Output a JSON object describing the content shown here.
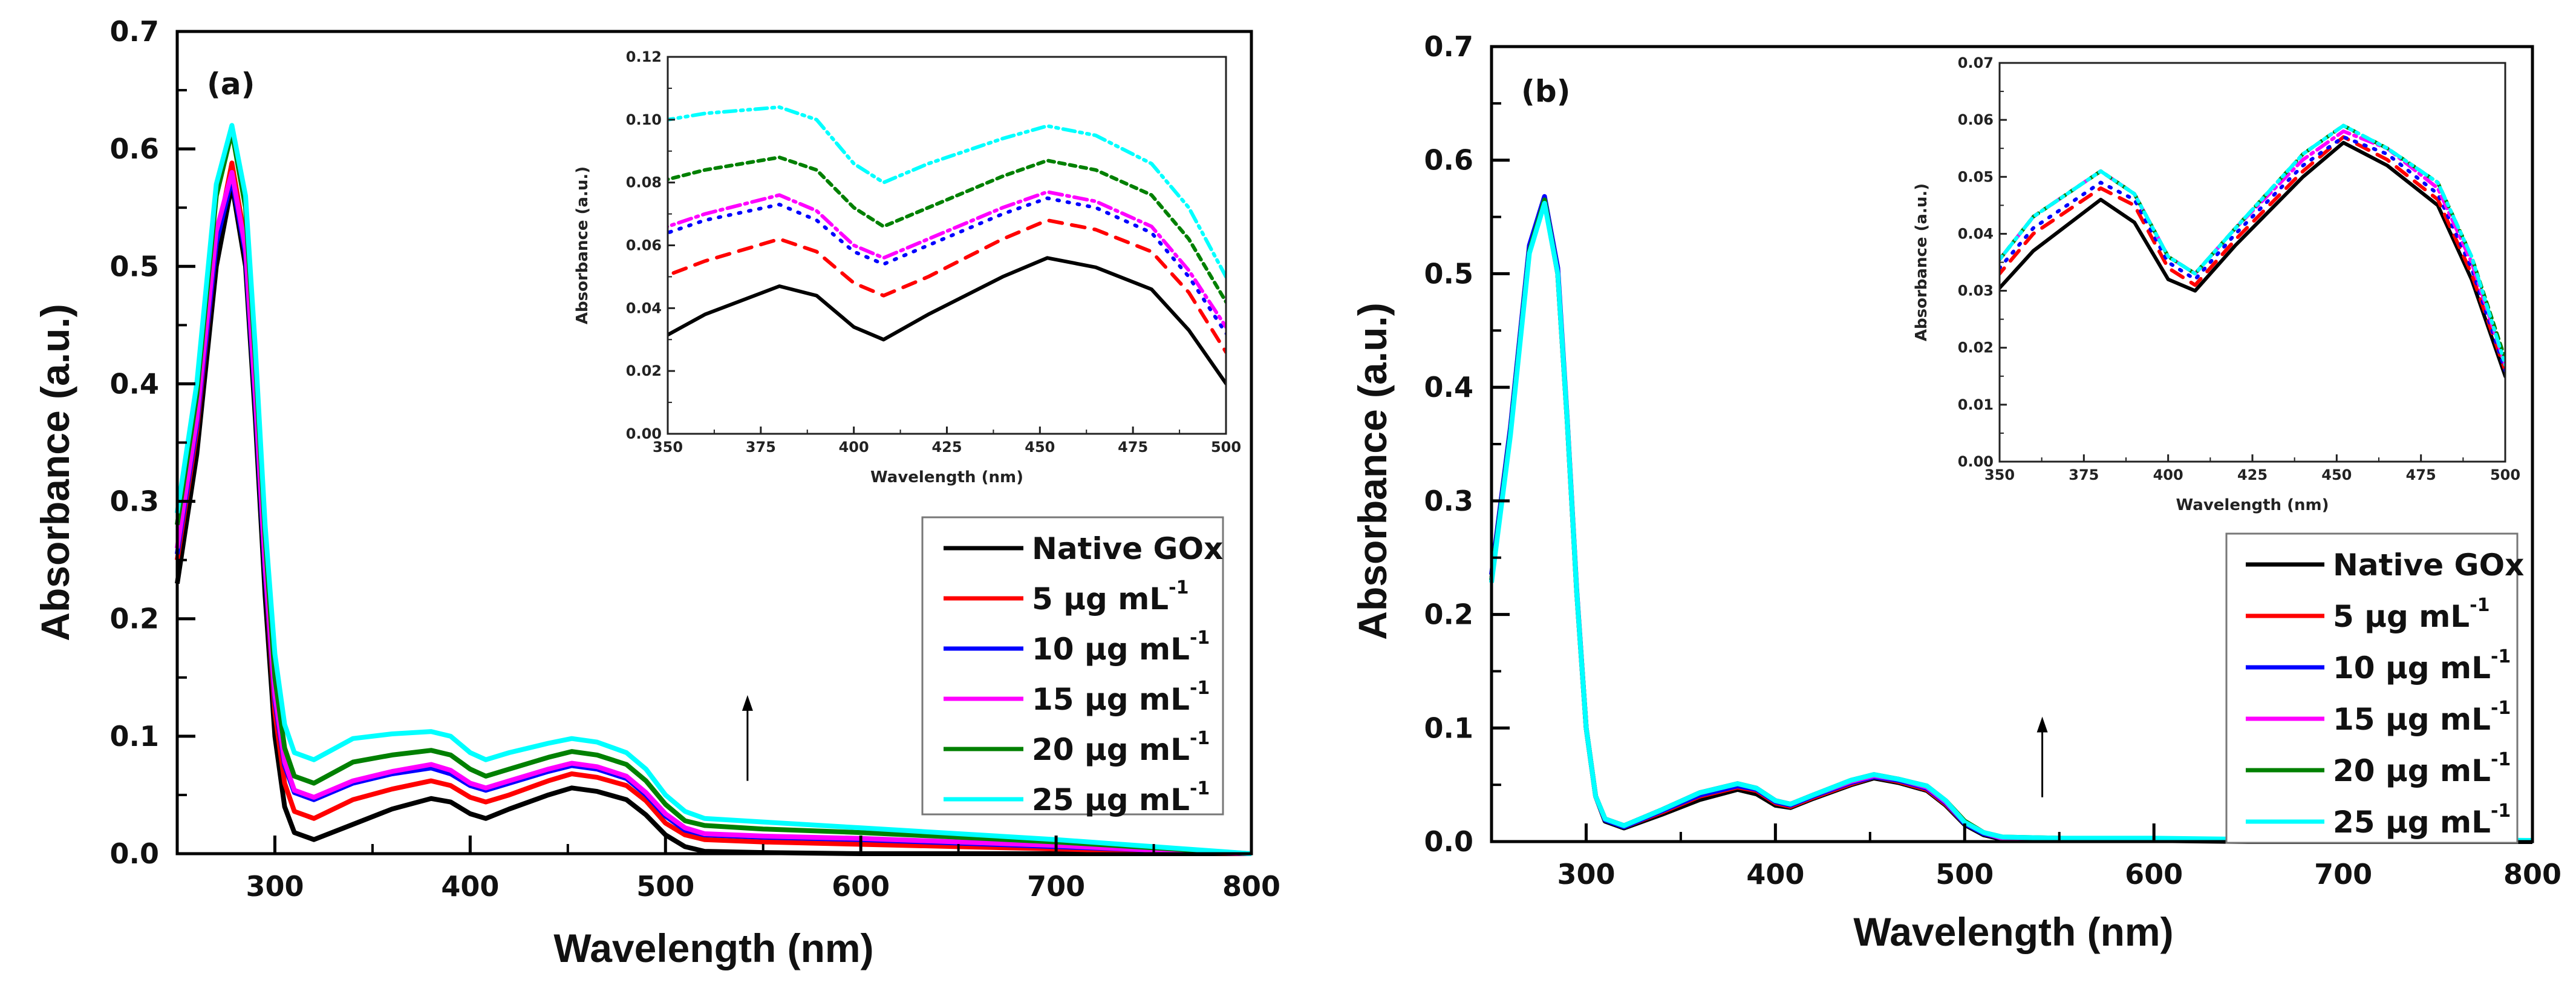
{
  "chart_data": [
    {
      "type": "line",
      "panel_label": "(a)",
      "xlabel": "Wavelength (nm)",
      "ylabel": "Absorbance (a.u.)",
      "xlim": [
        250,
        800
      ],
      "ylim": [
        0,
        0.7
      ],
      "xticks": [
        "300",
        "400",
        "500",
        "600",
        "700",
        "800"
      ],
      "yticks": [
        "0.0",
        "0.1",
        "0.2",
        "0.3",
        "0.4",
        "0.5",
        "0.6",
        "0.7"
      ],
      "grid": false,
      "legend_position": "bottom-right",
      "annotation": {
        "type": "arrow-up",
        "x": 542,
        "y_from": 0.062,
        "y_to": 0.135
      },
      "x": [
        250,
        260,
        270,
        278,
        285,
        290,
        295,
        300,
        305,
        310,
        320,
        340,
        360,
        380,
        390,
        400,
        408,
        420,
        440,
        452,
        465,
        480,
        490,
        500,
        510,
        520,
        550,
        600,
        650,
        700,
        750,
        800
      ],
      "series": [
        {
          "label": "Native GOx",
          "label_sup": "",
          "color": "#000000",
          "inset_dash": "",
          "values": [
            0.23,
            0.34,
            0.5,
            0.57,
            0.5,
            0.37,
            0.22,
            0.1,
            0.04,
            0.018,
            0.012,
            0.025,
            0.038,
            0.047,
            0.044,
            0.034,
            0.03,
            0.038,
            0.05,
            0.056,
            0.053,
            0.046,
            0.033,
            0.016,
            0.006,
            0.002,
            0.001,
            0,
            0,
            0,
            0,
            0
          ]
        },
        {
          "label": "5 µg mL",
          "label_sup": "-1",
          "color": "#ff0000",
          "inset_dash": "22,16",
          "values": [
            0.25,
            0.36,
            0.52,
            0.588,
            0.52,
            0.39,
            0.24,
            0.12,
            0.06,
            0.036,
            0.03,
            0.046,
            0.055,
            0.062,
            0.058,
            0.048,
            0.044,
            0.05,
            0.062,
            0.068,
            0.065,
            0.058,
            0.045,
            0.026,
            0.016,
            0.012,
            0.01,
            0.008,
            0.006,
            0.004,
            0.002,
            0
          ]
        },
        {
          "label": "10 µg mL",
          "label_sup": "-1",
          "color": "#0000ff",
          "inset_dash": "3,14",
          "values": [
            0.255,
            0.365,
            0.52,
            0.575,
            0.51,
            0.385,
            0.24,
            0.13,
            0.075,
            0.052,
            0.046,
            0.06,
            0.068,
            0.073,
            0.068,
            0.058,
            0.054,
            0.06,
            0.07,
            0.075,
            0.072,
            0.064,
            0.05,
            0.032,
            0.02,
            0.016,
            0.014,
            0.012,
            0.009,
            0.006,
            0.003,
            0
          ]
        },
        {
          "label": "15 µg mL",
          "label_sup": "-1",
          "color": "#ff00ff",
          "inset_dash": "22,8,4,8",
          "values": [
            0.26,
            0.37,
            0.53,
            0.58,
            0.515,
            0.39,
            0.245,
            0.135,
            0.078,
            0.054,
            0.048,
            0.062,
            0.07,
            0.076,
            0.071,
            0.06,
            0.056,
            0.062,
            0.072,
            0.077,
            0.074,
            0.066,
            0.052,
            0.034,
            0.022,
            0.017,
            0.015,
            0.013,
            0.01,
            0.007,
            0.003,
            0
          ]
        },
        {
          "label": "20 µg mL",
          "label_sup": "-1",
          "color": "#008000",
          "inset_dash": "10,8",
          "values": [
            0.28,
            0.39,
            0.56,
            0.615,
            0.55,
            0.42,
            0.27,
            0.15,
            0.09,
            0.066,
            0.06,
            0.078,
            0.084,
            0.088,
            0.084,
            0.072,
            0.066,
            0.072,
            0.082,
            0.087,
            0.084,
            0.076,
            0.062,
            0.042,
            0.028,
            0.024,
            0.021,
            0.018,
            0.014,
            0.01,
            0.005,
            0
          ]
        },
        {
          "label": "25 µg mL",
          "label_sup": "-1",
          "color": "#00ffff",
          "inset_dash": "20,8,4,8,4,8",
          "values": [
            0.29,
            0.4,
            0.57,
            0.62,
            0.56,
            0.43,
            0.28,
            0.17,
            0.11,
            0.086,
            0.08,
            0.098,
            0.102,
            0.104,
            0.1,
            0.086,
            0.08,
            0.086,
            0.094,
            0.098,
            0.095,
            0.086,
            0.072,
            0.05,
            0.036,
            0.03,
            0.027,
            0.022,
            0.017,
            0.012,
            0.006,
            0
          ]
        }
      ],
      "inset": {
        "xlabel": "Wavelength (nm)",
        "ylabel": "Absorbance (a.u.)",
        "xlim": [
          350,
          500
        ],
        "ylim": [
          0,
          0.12
        ],
        "xticks": [
          "350",
          "375",
          "400",
          "425",
          "450",
          "475",
          "500"
        ],
        "yticks": [
          "0.00",
          "0.02",
          "0.04",
          "0.06",
          "0.08",
          "0.10",
          "0.12"
        ]
      }
    },
    {
      "type": "line",
      "panel_label": "(b)",
      "xlabel": "Wavelength (nm)",
      "ylabel": "Absorbance (a.u.)",
      "xlim": [
        250,
        800
      ],
      "ylim": [
        0,
        0.7
      ],
      "xticks": [
        "300",
        "400",
        "500",
        "600",
        "700",
        "800"
      ],
      "yticks": [
        "0.0",
        "0.1",
        "0.2",
        "0.3",
        "0.4",
        "0.5",
        "0.6",
        "0.7"
      ],
      "grid": false,
      "legend_position": "bottom-right",
      "annotation": {
        "type": "arrow-up",
        "x": 541,
        "y_from": 0.039,
        "y_to": 0.11
      },
      "x": [
        250,
        260,
        270,
        278,
        285,
        290,
        295,
        300,
        305,
        310,
        320,
        340,
        360,
        380,
        390,
        400,
        408,
        420,
        440,
        452,
        465,
        480,
        490,
        500,
        510,
        520,
        550,
        600,
        650,
        700,
        750,
        800
      ],
      "series": [
        {
          "label": "Native GOx",
          "label_sup": "",
          "color": "#000000",
          "inset_dash": "",
          "values": [
            0.23,
            0.36,
            0.52,
            0.565,
            0.5,
            0.37,
            0.22,
            0.1,
            0.04,
            0.018,
            0.012,
            0.024,
            0.037,
            0.046,
            0.042,
            0.032,
            0.03,
            0.038,
            0.05,
            0.056,
            0.052,
            0.045,
            0.032,
            0.015,
            0.006,
            0.002,
            0.001,
            0.001,
            0,
            0,
            0,
            0
          ]
        },
        {
          "label": "5 µg mL",
          "label_sup": "-1",
          "color": "#ff0000",
          "inset_dash": "22,16",
          "values": [
            0.23,
            0.36,
            0.52,
            0.563,
            0.5,
            0.37,
            0.22,
            0.1,
            0.04,
            0.019,
            0.013,
            0.026,
            0.04,
            0.048,
            0.045,
            0.034,
            0.031,
            0.039,
            0.051,
            0.057,
            0.053,
            0.046,
            0.033,
            0.016,
            0.007,
            0.003,
            0.002,
            0.001,
            0.001,
            0.001,
            0.001,
            0.001
          ]
        },
        {
          "label": "10 µg mL",
          "label_sup": "-1",
          "color": "#0000ff",
          "inset_dash": "3,14",
          "values": [
            0.235,
            0.365,
            0.525,
            0.568,
            0.505,
            0.372,
            0.222,
            0.1,
            0.04,
            0.019,
            0.013,
            0.027,
            0.041,
            0.049,
            0.046,
            0.035,
            0.032,
            0.04,
            0.052,
            0.057,
            0.054,
            0.047,
            0.034,
            0.016,
            0.007,
            0.003,
            0.002,
            0.002,
            0.001,
            0.001,
            0.001,
            0.001
          ]
        },
        {
          "label": "15 µg mL",
          "label_sup": "-1",
          "color": "#ff00ff",
          "inset_dash": "22,8,4,8",
          "values": [
            0.23,
            0.36,
            0.52,
            0.565,
            0.5,
            0.37,
            0.22,
            0.1,
            0.04,
            0.02,
            0.014,
            0.028,
            0.043,
            0.051,
            0.047,
            0.036,
            0.033,
            0.041,
            0.053,
            0.058,
            0.055,
            0.048,
            0.035,
            0.017,
            0.008,
            0.003,
            0.002,
            0.002,
            0.002,
            0.001,
            0.001,
            0.001
          ]
        },
        {
          "label": "20 µg mL",
          "label_sup": "-1",
          "color": "#008000",
          "inset_dash": "10,8",
          "values": [
            0.23,
            0.36,
            0.52,
            0.565,
            0.5,
            0.37,
            0.22,
            0.1,
            0.04,
            0.02,
            0.014,
            0.028,
            0.043,
            0.051,
            0.047,
            0.036,
            0.033,
            0.041,
            0.054,
            0.059,
            0.055,
            0.049,
            0.036,
            0.018,
            0.008,
            0.004,
            0.003,
            0.002,
            0.002,
            0.002,
            0.001,
            0.001
          ]
        },
        {
          "label": "25 µg mL",
          "label_sup": "-1",
          "color": "#00ffff",
          "inset_dash": "20,8,4,8,4,8",
          "values": [
            0.228,
            0.358,
            0.518,
            0.562,
            0.5,
            0.37,
            0.22,
            0.1,
            0.04,
            0.02,
            0.014,
            0.028,
            0.043,
            0.051,
            0.047,
            0.036,
            0.033,
            0.041,
            0.054,
            0.059,
            0.055,
            0.049,
            0.036,
            0.017,
            0.008,
            0.004,
            0.003,
            0.003,
            0.002,
            0.002,
            0.002,
            0.001
          ]
        }
      ],
      "inset": {
        "xlabel": "Wavelength (nm)",
        "ylabel": "Absorbance (a.u.)",
        "xlim": [
          350,
          500
        ],
        "ylim": [
          0,
          0.07
        ],
        "xticks": [
          "350",
          "375",
          "400",
          "425",
          "450",
          "475",
          "500"
        ],
        "yticks": [
          "0.00",
          "0.01",
          "0.02",
          "0.03",
          "0.04",
          "0.05",
          "0.06",
          "0.07"
        ]
      }
    }
  ]
}
